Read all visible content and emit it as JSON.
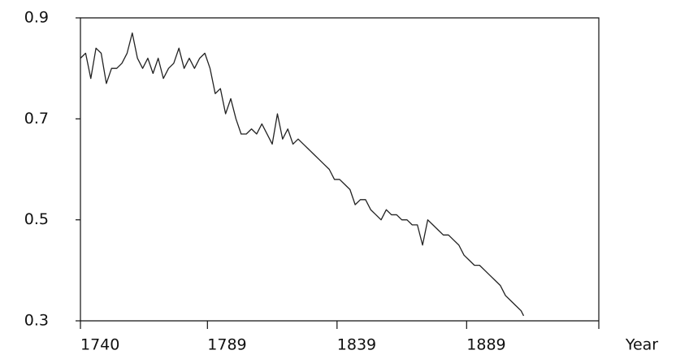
{
  "chart_data": {
    "type": "line",
    "x": [
      1740,
      1742,
      1744,
      1746,
      1748,
      1750,
      1752,
      1754,
      1756,
      1758,
      1760,
      1762,
      1764,
      1766,
      1768,
      1770,
      1772,
      1774,
      1776,
      1778,
      1780,
      1782,
      1784,
      1786,
      1788,
      1790,
      1792,
      1794,
      1796,
      1798,
      1800,
      1802,
      1804,
      1806,
      1808,
      1810,
      1812,
      1814,
      1816,
      1818,
      1820,
      1822,
      1824,
      1826,
      1828,
      1830,
      1832,
      1834,
      1836,
      1838,
      1840,
      1842,
      1844,
      1846,
      1848,
      1850,
      1852,
      1854,
      1856,
      1858,
      1860,
      1862,
      1864,
      1866,
      1868,
      1870,
      1872,
      1874,
      1876,
      1878,
      1880,
      1882,
      1884,
      1886,
      1888,
      1890,
      1892,
      1894,
      1896,
      1898,
      1900,
      1902,
      1904,
      1906,
      1908,
      1910,
      1911
    ],
    "series": [
      {
        "color": "#222222",
        "values": [
          0.82,
          0.83,
          0.78,
          0.84,
          0.83,
          0.77,
          0.8,
          0.8,
          0.81,
          0.83,
          0.87,
          0.82,
          0.8,
          0.82,
          0.79,
          0.82,
          0.78,
          0.8,
          0.81,
          0.84,
          0.8,
          0.82,
          0.8,
          0.82,
          0.83,
          0.8,
          0.75,
          0.76,
          0.71,
          0.74,
          0.7,
          0.67,
          0.67,
          0.68,
          0.67,
          0.69,
          0.67,
          0.65,
          0.71,
          0.66,
          0.68,
          0.65,
          0.66,
          0.65,
          0.64,
          0.63,
          0.62,
          0.61,
          0.6,
          0.58,
          0.58,
          0.57,
          0.56,
          0.53,
          0.54,
          0.54,
          0.52,
          0.51,
          0.5,
          0.52,
          0.51,
          0.51,
          0.5,
          0.5,
          0.49,
          0.49,
          0.45,
          0.5,
          0.49,
          0.48,
          0.47,
          0.47,
          0.46,
          0.45,
          0.43,
          0.42,
          0.41,
          0.41,
          0.4,
          0.39,
          0.38,
          0.37,
          0.35,
          0.34,
          0.33,
          0.32,
          0.31
        ]
      }
    ],
    "x_label": "Year",
    "xlim": [
      1740,
      1940
    ],
    "xticks": [
      1740,
      1789,
      1839,
      1889
    ],
    "ylim": [
      0.3,
      0.9
    ],
    "yticks": [
      0.3,
      0.5,
      0.7,
      0.9
    ],
    "grid": false
  }
}
